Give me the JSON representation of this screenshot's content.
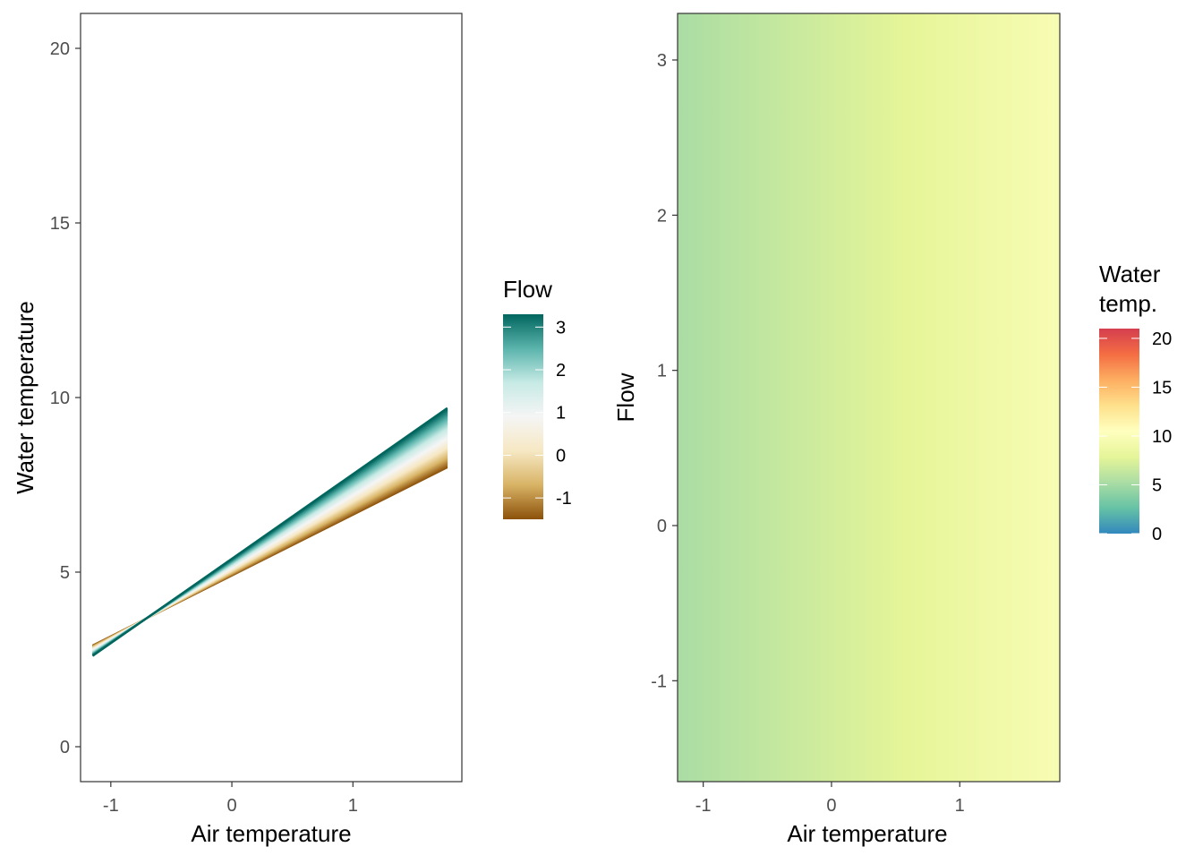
{
  "chart_data": [
    {
      "type": "area",
      "xlabel": "Air temperature",
      "ylabel": "Water temperature",
      "xlim": [
        -1.25,
        1.9
      ],
      "ylim": [
        -1,
        21
      ],
      "x_ticks": [
        -1,
        0,
        1
      ],
      "x_tick_labels": [
        "-1",
        "0",
        "1"
      ],
      "y_ticks": [
        0,
        5,
        10,
        15,
        20
      ],
      "y_tick_labels": [
        "0",
        "5",
        "10",
        "15",
        "20"
      ],
      "grid": false,
      "x_range": [
        -1.15,
        1.78
      ],
      "lines": [
        {
          "flow": -1.5,
          "y_at_xmin": 2.9,
          "y_at_xmax": 8.0
        },
        {
          "flow": 3.3,
          "y_at_xmin": 2.6,
          "y_at_xmax": 9.7
        }
      ],
      "legend": {
        "title": "Flow",
        "labels": [
          "3",
          "2",
          "1",
          "0",
          "-1"
        ],
        "values": [
          3,
          2,
          1,
          0,
          -1
        ],
        "range": [
          -1.5,
          3.3
        ],
        "palette": [
          "#8c510a",
          "#d8b365",
          "#f6e8c3",
          "#f5f5f5",
          "#c7eae5",
          "#5ab4ac",
          "#01665e"
        ],
        "placement": "right"
      }
    },
    {
      "type": "heatmap",
      "xlabel": "Air temperature",
      "ylabel": "Flow",
      "xlim": [
        -1.2,
        1.78
      ],
      "ylim": [
        -1.65,
        3.3
      ],
      "x_ticks": [
        -1,
        0,
        1
      ],
      "x_tick_labels": [
        "-1",
        "0",
        "1"
      ],
      "y_ticks": [
        -1,
        0,
        1,
        2,
        3
      ],
      "y_tick_labels": [
        "-1",
        "0",
        "1",
        "2",
        "3"
      ],
      "grid": false,
      "z_at_xmin": 5.2,
      "z_at_xmax": 9.7,
      "legend": {
        "title_lines": [
          "Water",
          "temp."
        ],
        "labels": [
          "20",
          "15",
          "10",
          "5",
          "0"
        ],
        "values": [
          20,
          15,
          10,
          5,
          0
        ],
        "range": [
          0,
          21
        ],
        "palette": [
          "#3288bd",
          "#66c2a5",
          "#abdda4",
          "#e6f598",
          "#ffffbf",
          "#fee08b",
          "#fdae61",
          "#f46d43",
          "#d53e4f"
        ],
        "placement": "right"
      }
    }
  ]
}
